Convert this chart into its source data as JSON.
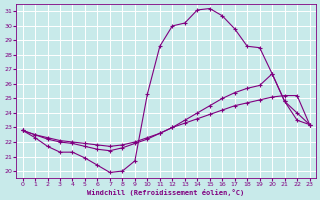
{
  "xlabel": "Windchill (Refroidissement éolien,°C)",
  "bg_color": "#c8eaea",
  "line_color": "#800080",
  "grid_color": "#ffffff",
  "xlim": [
    -0.5,
    23.5
  ],
  "ylim": [
    19.5,
    31.5
  ],
  "yticks": [
    20,
    21,
    22,
    23,
    24,
    25,
    26,
    27,
    28,
    29,
    30,
    31
  ],
  "xticks": [
    0,
    1,
    2,
    3,
    4,
    5,
    6,
    7,
    8,
    9,
    10,
    11,
    12,
    13,
    14,
    15,
    16,
    17,
    18,
    19,
    20,
    21,
    22,
    23
  ],
  "line1_x": [
    0,
    1,
    2,
    3,
    4,
    5,
    6,
    7,
    8,
    9,
    10,
    11,
    12,
    13,
    14,
    15,
    16,
    17,
    18,
    19,
    20,
    21,
    22,
    23
  ],
  "line1_y": [
    22.8,
    22.3,
    21.7,
    21.3,
    21.3,
    20.9,
    20.4,
    19.9,
    20.0,
    20.7,
    25.3,
    28.6,
    30.0,
    30.2,
    31.1,
    31.2,
    30.7,
    29.8,
    28.6,
    28.5,
    26.7,
    24.8,
    23.5,
    23.2
  ],
  "line2_x": [
    0,
    1,
    2,
    3,
    4,
    5,
    6,
    7,
    8,
    9,
    10,
    11,
    12,
    13,
    14,
    15,
    16,
    17,
    18,
    19,
    20,
    21,
    22,
    23
  ],
  "line2_y": [
    22.8,
    22.5,
    22.2,
    22.0,
    21.9,
    21.7,
    21.5,
    21.4,
    21.6,
    21.9,
    22.2,
    22.6,
    23.0,
    23.5,
    24.0,
    24.5,
    25.0,
    25.4,
    25.7,
    25.9,
    26.7,
    24.8,
    24.0,
    23.2
  ],
  "line3_x": [
    0,
    1,
    2,
    3,
    4,
    5,
    6,
    7,
    8,
    9,
    10,
    11,
    12,
    13,
    14,
    15,
    16,
    17,
    18,
    19,
    20,
    21,
    22,
    23
  ],
  "line3_y": [
    22.8,
    22.5,
    22.3,
    22.1,
    22.0,
    21.9,
    21.8,
    21.7,
    21.8,
    22.0,
    22.3,
    22.6,
    23.0,
    23.3,
    23.6,
    23.9,
    24.2,
    24.5,
    24.7,
    24.9,
    25.1,
    25.2,
    25.2,
    23.2
  ]
}
